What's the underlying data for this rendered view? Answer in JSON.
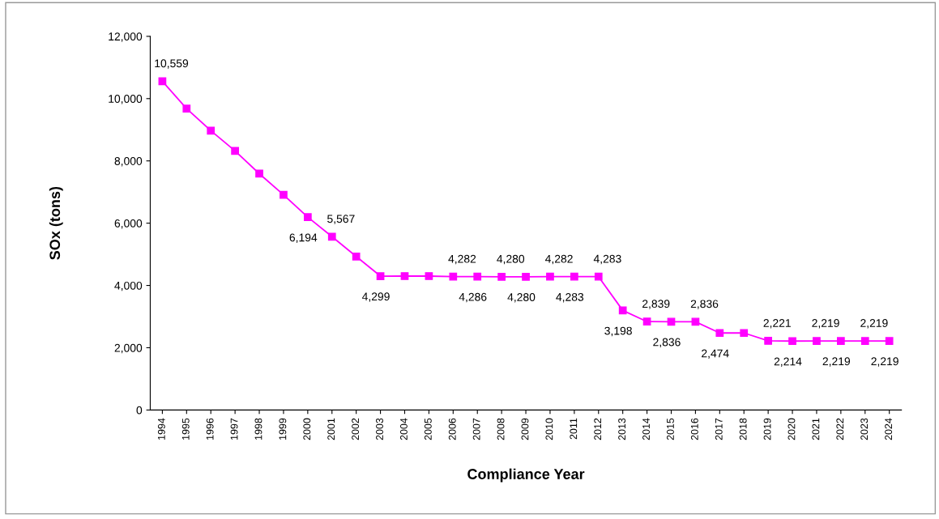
{
  "chart_data": {
    "type": "line",
    "xlabel": "Compliance Year",
    "ylabel": "SOx (tons)",
    "categories": [
      "1994",
      "1995",
      "1996",
      "1997",
      "1998",
      "1999",
      "2000",
      "2001",
      "2002",
      "2003",
      "2004",
      "2005",
      "2006",
      "2007",
      "2008",
      "2009",
      "2010",
      "2011",
      "2012",
      "2013",
      "2014",
      "2015",
      "2016",
      "2017",
      "2018",
      "2019",
      "2020",
      "2021",
      "2022",
      "2023",
      "2024"
    ],
    "series": [
      {
        "color": "#ff00ff",
        "values": [
          10559,
          9680,
          8970,
          8320,
          7590,
          6910,
          6194,
          5567,
          4930,
          4299,
          4300,
          4300,
          4282,
          4286,
          4280,
          4280,
          4282,
          4283,
          4283,
          3198,
          2839,
          2836,
          2836,
          2474,
          2474,
          2221,
          2214,
          2219,
          2219,
          2219,
          2219
        ],
        "value_labels": [
          "10,559",
          null,
          null,
          null,
          null,
          null,
          "6,194",
          "5,567",
          null,
          "4,299",
          null,
          null,
          "4,282",
          "4,286",
          "4,280",
          "4,280",
          "4,282",
          "4,283",
          "4,283",
          "3,198",
          "2,839",
          "2,836",
          "2,836",
          "2,474",
          null,
          "2,221",
          "2,214",
          "2,219",
          "2,219",
          "2,219",
          "2,219"
        ]
      }
    ],
    "ylim": [
      0,
      12000
    ],
    "yticks": [
      {
        "value": 0,
        "label": "0"
      },
      {
        "value": 2000,
        "label": "2,000"
      },
      {
        "value": 4000,
        "label": "4,000"
      },
      {
        "value": 6000,
        "label": "6,000"
      },
      {
        "value": 8000,
        "label": "8,000"
      },
      {
        "value": 10000,
        "label": "10,000"
      },
      {
        "value": 12000,
        "label": "12,000"
      }
    ],
    "marker": "square",
    "line_style": "solid",
    "grid": false
  }
}
